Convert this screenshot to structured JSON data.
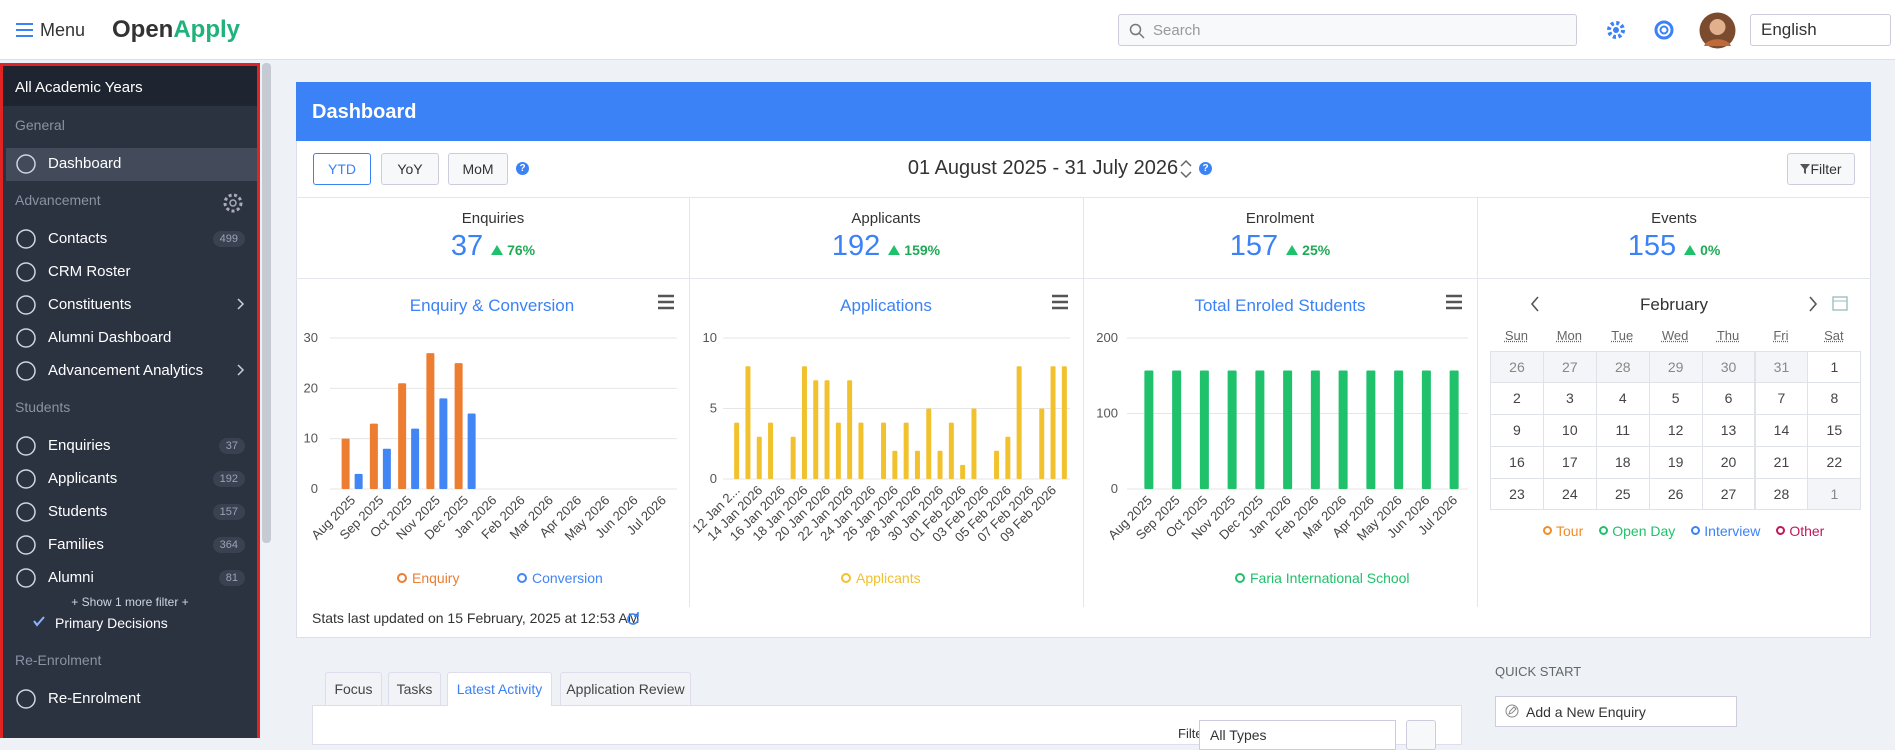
{
  "header": {
    "menu": "Menu",
    "logo_open": "Open",
    "logo_apply": "Apply",
    "search_placeholder": "Search",
    "language": "English"
  },
  "sidebar": {
    "year": "All Academic Years",
    "sections": [
      {
        "title": "General",
        "items": [
          {
            "label": "Dashboard"
          }
        ]
      },
      {
        "title": "Advancement",
        "items": [
          {
            "label": "Contacts",
            "count": 499
          },
          {
            "label": "CRM Roster"
          },
          {
            "label": "Constituents"
          },
          {
            "label": "Alumni Dashboard"
          },
          {
            "label": "Advancement Analytics"
          }
        ]
      },
      {
        "title": "Students",
        "items": [
          {
            "label": "Enquiries",
            "count": 37
          },
          {
            "label": "Applicants",
            "count": 192
          },
          {
            "label": "Students",
            "count": 157
          },
          {
            "label": "Families",
            "count": 364
          },
          {
            "label": "Alumni",
            "count": 81
          }
        ]
      },
      {
        "title": "Re-Enrolment",
        "items": [
          {
            "label": "Re-Enrolment"
          }
        ]
      }
    ],
    "show_more": "+ Show 1 more filter +",
    "primary_decisions": "Primary Decisions"
  },
  "dashboard": {
    "title": "Dashboard",
    "periods": [
      "YTD",
      "YoY",
      "MoM"
    ],
    "date_range": "01 August 2025 - 31 July 2026",
    "filter": "Filter",
    "stats": [
      {
        "label": "Enquiries",
        "value": 37,
        "change": "76%"
      },
      {
        "label": "Applicants",
        "value": 192,
        "change": "159%"
      },
      {
        "label": "Enrolment",
        "value": 157,
        "change": "25%"
      },
      {
        "label": "Events",
        "value": 155,
        "change": "0%"
      }
    ],
    "charts": [
      {
        "type": "bar",
        "title": "Enquiry & Conversion",
        "categories": [
          "Aug 2025",
          "Sep 2025",
          "Oct 2025",
          "Nov 2025",
          "Dec 2025",
          "Jan 2026",
          "Feb 2026",
          "Mar 2026",
          "Apr 2026",
          "May 2026",
          "Jun 2026",
          "Jul 2026"
        ],
        "series": [
          {
            "name": "Enquiry",
            "color": "#ed7d31",
            "values": [
              10,
              13,
              21,
              27,
              25,
              null,
              null,
              null,
              null,
              null,
              null,
              null
            ]
          },
          {
            "name": "Conversion",
            "color": "#4285f4",
            "values": [
              3,
              8,
              12,
              18,
              15,
              null,
              null,
              null,
              null,
              null,
              null,
              null
            ]
          }
        ],
        "ylim": [
          0,
          30
        ],
        "yticks": [
          0,
          10,
          20,
          30
        ]
      },
      {
        "type": "bar",
        "title": "Applications",
        "categories": [
          "12 Jan 2...",
          null,
          "14 Jan 2026",
          null,
          "16 Jan 2026",
          null,
          "18 Jan 2026",
          null,
          "20 Jan 2026",
          null,
          "22 Jan 2026",
          null,
          "24 Jan 2026",
          null,
          "26 Jan 2026",
          null,
          "28 Jan 2026",
          null,
          "30 Jan 2026",
          null,
          "01 Feb 2026",
          null,
          "03 Feb 2026",
          null,
          "05 Feb 2026",
          null,
          "07 Feb 2026",
          null,
          "09 Feb 2026",
          null
        ],
        "series": [
          {
            "name": "Applicants",
            "color": "#f2c12e",
            "values": [
              4,
              8,
              3,
              4,
              0,
              3,
              8,
              7,
              7,
              4,
              7,
              4,
              0,
              4,
              2,
              4,
              2,
              5,
              2,
              4,
              1,
              5,
              0,
              2,
              3,
              8,
              0,
              5,
              8,
              8
            ]
          }
        ],
        "ylim": [
          0,
          10
        ],
        "yticks": [
          0,
          5,
          10
        ]
      },
      {
        "type": "bar",
        "title": "Total Enroled Students",
        "categories": [
          "Aug 2025",
          "Sep 2025",
          "Oct 2025",
          "Nov 2025",
          "Dec 2025",
          "Jan 2026",
          "Feb 2026",
          "Mar 2026",
          "Apr 2026",
          "May 2026",
          "Jun 2026",
          "Jul 2026"
        ],
        "series": [
          {
            "name": "Faria International School",
            "color": "#1fc16b",
            "values": [
              157,
              157,
              157,
              157,
              157,
              157,
              157,
              157,
              157,
              157,
              157,
              157
            ]
          }
        ],
        "ylim": [
          0,
          200
        ],
        "yticks": [
          0,
          100,
          200
        ]
      }
    ],
    "calendar": {
      "month": "February",
      "weekdays": [
        "Sun",
        "Mon",
        "Tue",
        "Wed",
        "Thu",
        "Fri",
        "Sat"
      ],
      "days": [
        [
          26,
          27,
          28,
          29,
          30,
          31,
          1
        ],
        [
          2,
          3,
          4,
          5,
          6,
          7,
          8
        ],
        [
          9,
          10,
          11,
          12,
          13,
          14,
          15
        ],
        [
          16,
          17,
          18,
          19,
          20,
          21,
          22
        ],
        [
          23,
          24,
          25,
          26,
          27,
          28,
          1
        ]
      ],
      "legend": [
        {
          "name": "Tour",
          "color": "#f28c28"
        },
        {
          "name": "Open Day",
          "color": "#1fc16b"
        },
        {
          "name": "Interview",
          "color": "#3b82f6"
        },
        {
          "name": "Other",
          "color": "#c2185b"
        }
      ]
    },
    "stats_updated": "Stats last updated on 15 February, 2025 at 12:53 AM"
  },
  "activity": {
    "tabs": [
      "Focus",
      "Tasks",
      "Latest Activity",
      "Application Review"
    ],
    "filter_label": "Filter:",
    "filter_value": "All Types"
  },
  "quick_start": {
    "title": "QUICK START",
    "button": "Add a New Enquiry"
  }
}
